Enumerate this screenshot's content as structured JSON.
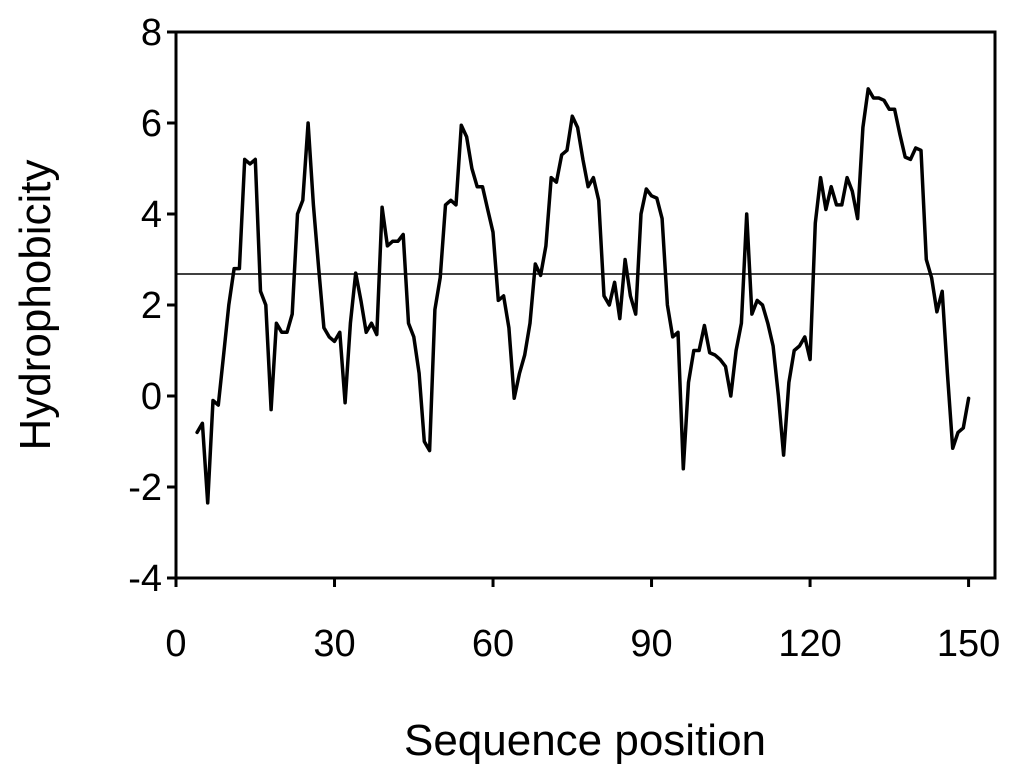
{
  "chart_data": {
    "type": "line",
    "x_label": "Sequence position",
    "y_label": "Hydrophobicity",
    "x": [
      4,
      5,
      6,
      7,
      8,
      9,
      10,
      11,
      12,
      13,
      14,
      15,
      16,
      17,
      18,
      19,
      20,
      21,
      22,
      23,
      24,
      25,
      26,
      27,
      28,
      29,
      30,
      31,
      32,
      33,
      34,
      35,
      36,
      37,
      38,
      39,
      40,
      41,
      42,
      43,
      44,
      45,
      46,
      47,
      48,
      49,
      50,
      51,
      52,
      53,
      54,
      55,
      56,
      57,
      58,
      59,
      60,
      61,
      62,
      63,
      64,
      65,
      66,
      67,
      68,
      69,
      70,
      71,
      72,
      73,
      74,
      75,
      76,
      77,
      78,
      79,
      80,
      81,
      82,
      83,
      84,
      85,
      86,
      87,
      88,
      89,
      90,
      91,
      92,
      93,
      94,
      95,
      96,
      97,
      98,
      99,
      100,
      101,
      102,
      103,
      104,
      105,
      106,
      107,
      108,
      109,
      110,
      111,
      112,
      113,
      114,
      115,
      116,
      117,
      118,
      119,
      120,
      121,
      122,
      123,
      124,
      125,
      126,
      127,
      128,
      129,
      130,
      131,
      132,
      133,
      134,
      135,
      136,
      137,
      138,
      139,
      140,
      141,
      142,
      143,
      144,
      145,
      146,
      147,
      148,
      149,
      150
    ],
    "series": [
      {
        "color": "#000000",
        "values": [
          -0.8,
          -0.6,
          -2.35,
          -0.1,
          -0.2,
          0.9,
          2.0,
          2.8,
          2.8,
          5.2,
          5.1,
          5.2,
          2.3,
          2.0,
          -0.3,
          1.6,
          1.4,
          1.4,
          1.8,
          4.0,
          4.3,
          6.0,
          4.2,
          2.8,
          1.5,
          1.3,
          1.2,
          1.4,
          -0.15,
          1.6,
          2.7,
          2.1,
          1.4,
          1.6,
          1.35,
          4.15,
          3.3,
          3.4,
          3.4,
          3.55,
          1.6,
          1.3,
          0.5,
          -1.0,
          -1.2,
          1.9,
          2.6,
          4.2,
          4.3,
          4.2,
          5.95,
          5.7,
          5.0,
          4.6,
          4.6,
          4.1,
          3.6,
          2.1,
          2.2,
          1.5,
          -0.05,
          0.5,
          0.9,
          1.6,
          2.9,
          2.65,
          3.3,
          4.8,
          4.7,
          5.3,
          5.4,
          6.15,
          5.9,
          5.2,
          4.6,
          4.8,
          4.3,
          2.2,
          2.0,
          2.5,
          1.7,
          3.0,
          2.2,
          1.8,
          4.0,
          4.55,
          4.4,
          4.35,
          3.9,
          2.0,
          1.3,
          1.4,
          -1.6,
          0.3,
          1.0,
          1.0,
          1.55,
          0.95,
          0.9,
          0.8,
          0.65,
          0.0,
          1.0,
          1.6,
          4.0,
          1.8,
          2.1,
          2.0,
          1.6,
          1.1,
          0.0,
          -1.3,
          0.3,
          1.0,
          1.1,
          1.3,
          0.8,
          3.8,
          4.8,
          4.1,
          4.6,
          4.2,
          4.2,
          4.8,
          4.5,
          3.9,
          5.9,
          6.75,
          6.55,
          6.55,
          6.5,
          6.3,
          6.3,
          5.75,
          5.25,
          5.2,
          5.45,
          5.4,
          3.0,
          2.6,
          1.85,
          2.3,
          0.5,
          -1.15,
          -0.8,
          -0.7,
          -0.05
        ]
      }
    ],
    "reference_line": 2.68,
    "xlim": [
      0,
      155
    ],
    "xticks": [
      0,
      30,
      60,
      90,
      120,
      150
    ],
    "ylim": [
      -4,
      8
    ],
    "yticks": [
      -4,
      -2,
      0,
      2,
      4,
      6,
      8
    ]
  }
}
